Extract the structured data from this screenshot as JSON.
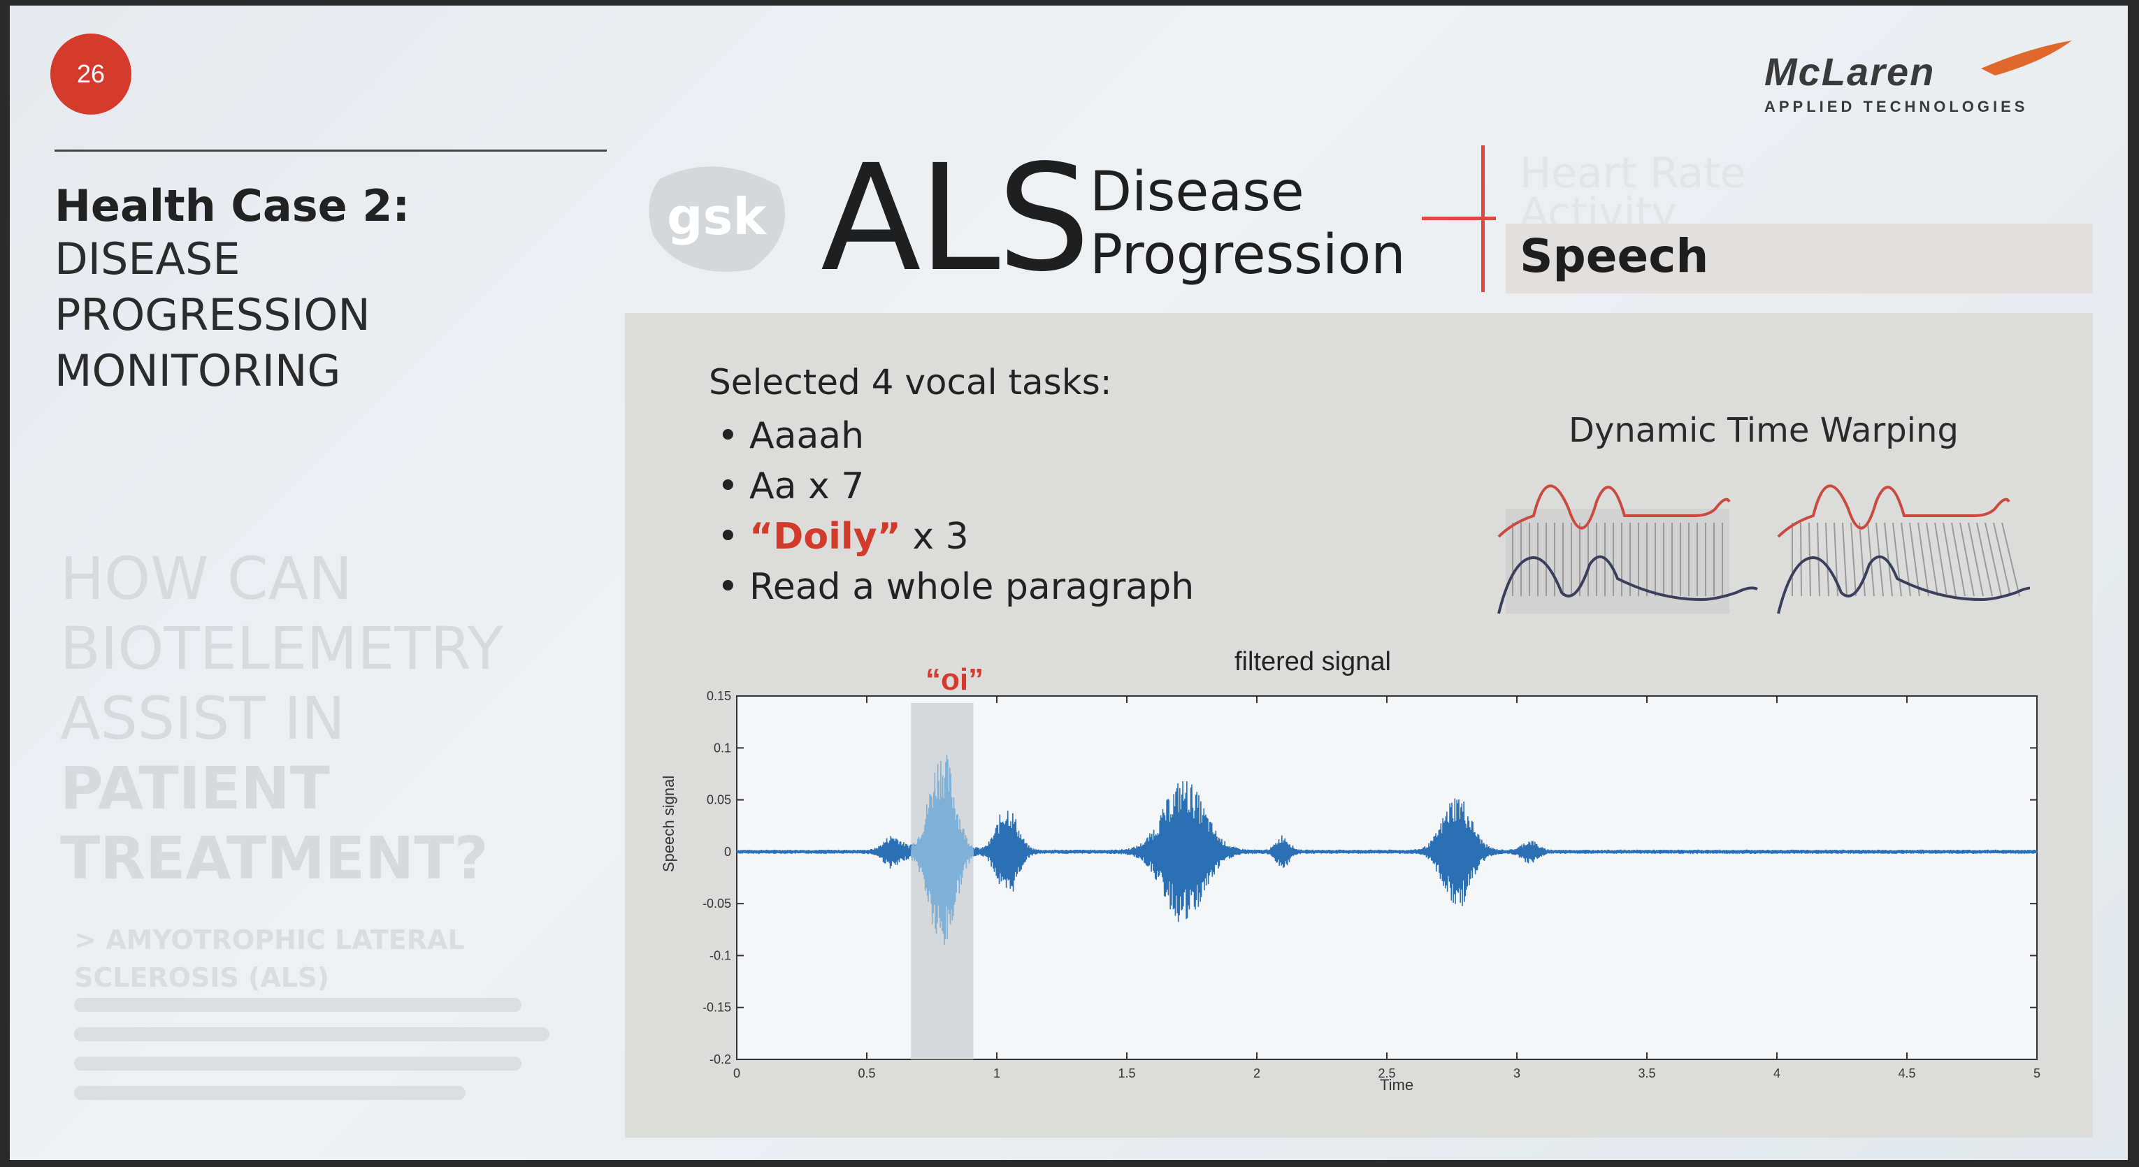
{
  "slide": {
    "page_number": "26",
    "logo": {
      "name": "McLaren",
      "sub": "APPLIED TECHNOLOGIES"
    },
    "left_panel": {
      "title_bold": "Health Case 2:",
      "title_lines": [
        "DISEASE",
        "PROGRESSION",
        "MONITORING"
      ],
      "faded_question": [
        "HOW CAN",
        "BIOTELEMETRY",
        "ASSIST IN",
        "PATIENT",
        "TREATMENT?"
      ],
      "faded_sub": [
        "> AMYOTROPHIC LATERAL",
        "SCLEROSIS (ALS)"
      ]
    },
    "header": {
      "partner_logo": "gsk",
      "title_big": "ALS",
      "title_line1": "Disease",
      "title_line2": "Progression",
      "tabs": [
        {
          "label": "Heart Rate",
          "active": false
        },
        {
          "label": "Activity",
          "active": false
        },
        {
          "label": "Speech",
          "active": true
        }
      ]
    },
    "tasks": {
      "heading": "Selected 4 vocal tasks:",
      "items": [
        {
          "prefix": "Aaaah",
          "highlight": "",
          "suffix": ""
        },
        {
          "prefix": "Aa x 7",
          "highlight": "",
          "suffix": ""
        },
        {
          "prefix": "",
          "highlight": "“Doily”",
          "suffix": " x 3"
        },
        {
          "prefix": "Read a whole paragraph",
          "highlight": "",
          "suffix": ""
        }
      ]
    },
    "dtw": {
      "title": "Dynamic Time Warping"
    },
    "plot": {
      "title": "filtered signal",
      "annotation": "“oi”",
      "ylabel": "Speech signal",
      "xlabel": "Time"
    },
    "colors": {
      "accent_red": "#d43b2c",
      "signal_blue": "#2b6fb5",
      "signal_light": "#7fb0d8"
    }
  },
  "chart_data": {
    "type": "line",
    "title": "filtered signal",
    "xlabel": "Time",
    "ylabel": "Speech signal",
    "xlim": [
      0,
      5
    ],
    "ylim": [
      -0.2,
      0.15
    ],
    "x_ticks": [
      "0",
      "0.5",
      "1",
      "1.5",
      "2",
      "2.5",
      "3",
      "3.5",
      "4",
      "4.5",
      "5"
    ],
    "y_ticks": [
      "0.15",
      "0.1",
      "0.05",
      "0",
      "-0.05",
      "-0.1",
      "-0.15",
      "-0.2"
    ],
    "highlight_region": {
      "x_start": 0.67,
      "x_end": 0.91,
      "label": "“oi”"
    },
    "bursts": [
      {
        "center": 0.6,
        "width": 0.07,
        "amp": 0.015
      },
      {
        "center": 0.79,
        "width": 0.1,
        "amp": 0.1
      },
      {
        "center": 1.04,
        "width": 0.08,
        "amp": 0.045
      },
      {
        "center": 1.72,
        "width": 0.16,
        "amp": 0.07
      },
      {
        "center": 2.1,
        "width": 0.05,
        "amp": 0.015
      },
      {
        "center": 2.77,
        "width": 0.11,
        "amp": 0.055
      },
      {
        "center": 3.05,
        "width": 0.06,
        "amp": 0.01
      }
    ]
  }
}
